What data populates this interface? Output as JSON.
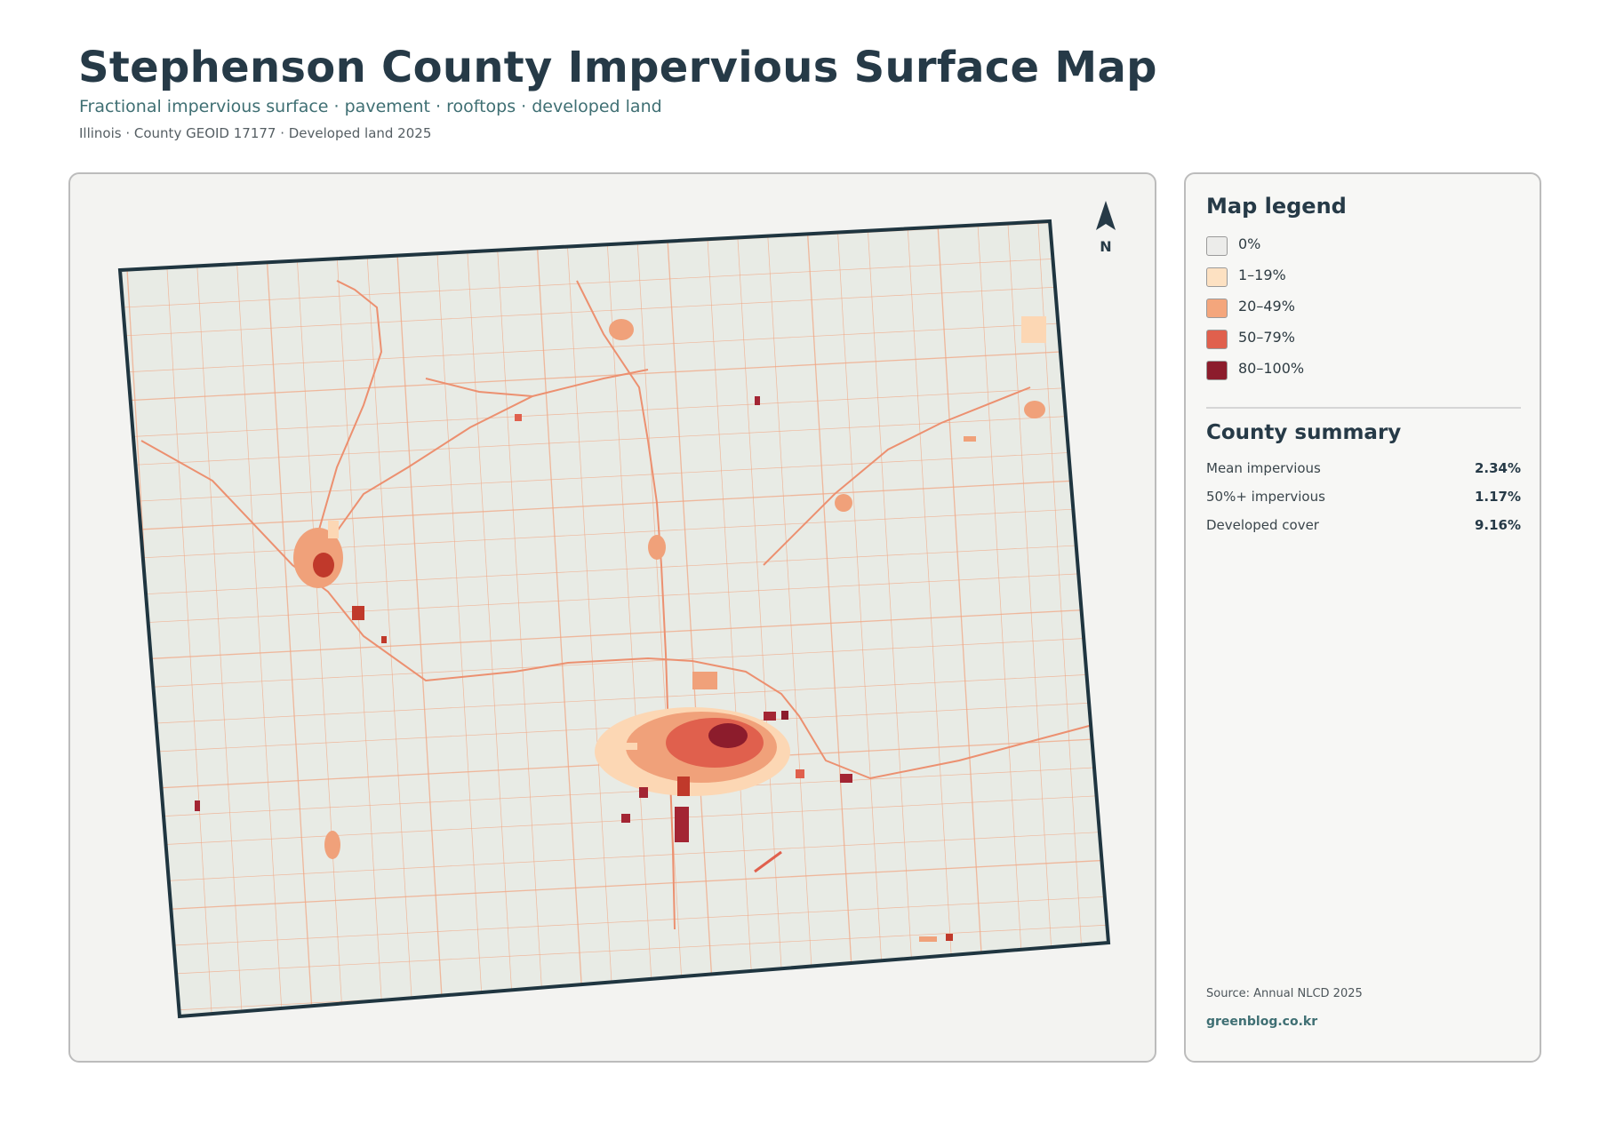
{
  "header": {
    "title": "Stephenson County Impervious Surface Map",
    "subtitle": "Fractional impervious surface · pavement · rooftops · developed land",
    "meta": "Illinois · County GEOID 17177 · Developed land 2025"
  },
  "map": {
    "north_label": "N",
    "colors": {
      "background": "#e8ebe5",
      "boundary": "#1f3540",
      "roads": "#f0a683",
      "urban_light": "#fcd7b4",
      "urban_mid": "#f0a17a",
      "urban_high": "#e0604d",
      "urban_core": "#8c1c2c"
    }
  },
  "legend": {
    "title": "Map legend",
    "items": [
      {
        "label": "0%",
        "color": "#ececea"
      },
      {
        "label": "1–19%",
        "color": "#fde1c2"
      },
      {
        "label": "20–49%",
        "color": "#f4a67c"
      },
      {
        "label": "50–79%",
        "color": "#e0604d"
      },
      {
        "label": "80–100%",
        "color": "#8c1c2c"
      }
    ]
  },
  "summary": {
    "title": "County summary",
    "rows": [
      {
        "label": "Mean impervious",
        "value": "2.34%"
      },
      {
        "label": "50%+ impervious",
        "value": "1.17%"
      },
      {
        "label": "Developed cover",
        "value": "9.16%"
      }
    ]
  },
  "footer": {
    "source": "Source: Annual NLCD 2025",
    "credit": "greenblog.co.kr"
  }
}
